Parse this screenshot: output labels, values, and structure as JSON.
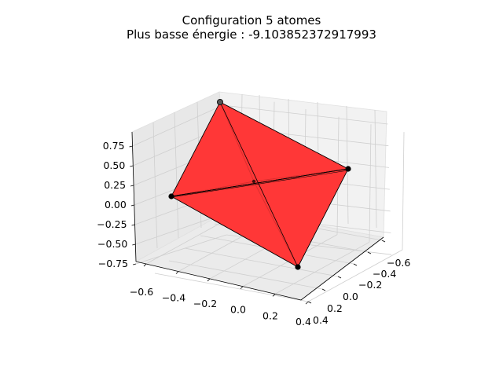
{
  "chart_data": {
    "type": "3d-polyhedron",
    "title": "Configuration 5 atomes",
    "subtitle": "Plus basse énergie : -9.103852372917993",
    "x_ticks": [
      "−0.6",
      "−0.4",
      "−0.2",
      "0.0",
      "0.2",
      "0.4"
    ],
    "y_ticks": [
      "−0.6",
      "−0.4",
      "−0.2",
      "0.0",
      "0.2",
      "0.4"
    ],
    "z_ticks": [
      "0.75",
      "0.50",
      "0.25",
      "0.00",
      "−0.25",
      "−0.50",
      "−0.75"
    ],
    "face_color": "#ff3535",
    "edge_color": "#000000",
    "atom_color": "#000000",
    "grid": true,
    "atoms_count": 5
  }
}
